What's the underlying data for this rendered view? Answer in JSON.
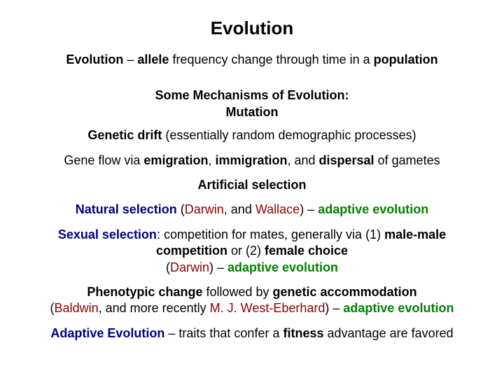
{
  "colors": {
    "background": "#ffffff",
    "text": "#000000",
    "navy": "#000080",
    "darkred": "#8b0000",
    "green": "#008000"
  },
  "typography": {
    "title_fontsize": 26,
    "body_fontsize": 18,
    "font_family": "Arial"
  },
  "title": "Evolution",
  "def_label": "Evolution",
  "def_sep": " – ",
  "def_allele": "allele",
  "def_mid": " frequency change through time in a ",
  "def_population": "population",
  "sub_line1": "Some Mechanisms of Evolution:",
  "sub_line2": "Mutation",
  "drift_label": "Genetic drift",
  "drift_rest": " (essentially random demographic processes)",
  "flow_pre": "Gene flow via ",
  "flow_emigration": "emigration",
  "flow_c1": ", ",
  "flow_immigration": "immigration",
  "flow_c2": ", and ",
  "flow_dispersal": "dispersal",
  "flow_post": " of gametes",
  "artificial": "Artificial selection",
  "ns_label": "Natural selection",
  "ns_paren_open": " (",
  "ns_darwin": "Darwin",
  "ns_mid": ", and ",
  "ns_wallace": "Wallace",
  "ns_paren_close": ") – ",
  "ns_adaptive": "adaptive evolution",
  "ss_label": "Sexual selection",
  "ss_colon": ":  competition for mates, generally via (1) ",
  "ss_male": "male-male competition",
  "ss_or": " or (2) ",
  "ss_female": "female choice",
  "ss_open": " (",
  "ss_darwin": "Darwin",
  "ss_close": ") – ",
  "ss_adaptive": "adaptive evolution",
  "pc_label": "Phenotypic change",
  "pc_mid1": " followed by ",
  "pc_accom": "genetic accommodation",
  "pc_open": " (",
  "pc_baldwin": "Baldwin",
  "pc_mid2": ", and more recently ",
  "pc_west": "M. J. West-Eberhard",
  "pc_close": ") – ",
  "pc_adaptive": "adaptive evolution",
  "ae_label": "Adaptive Evolution",
  "ae_sep": " – traits that confer a ",
  "ae_fitness": "fitness",
  "ae_rest": " advantage are favored"
}
